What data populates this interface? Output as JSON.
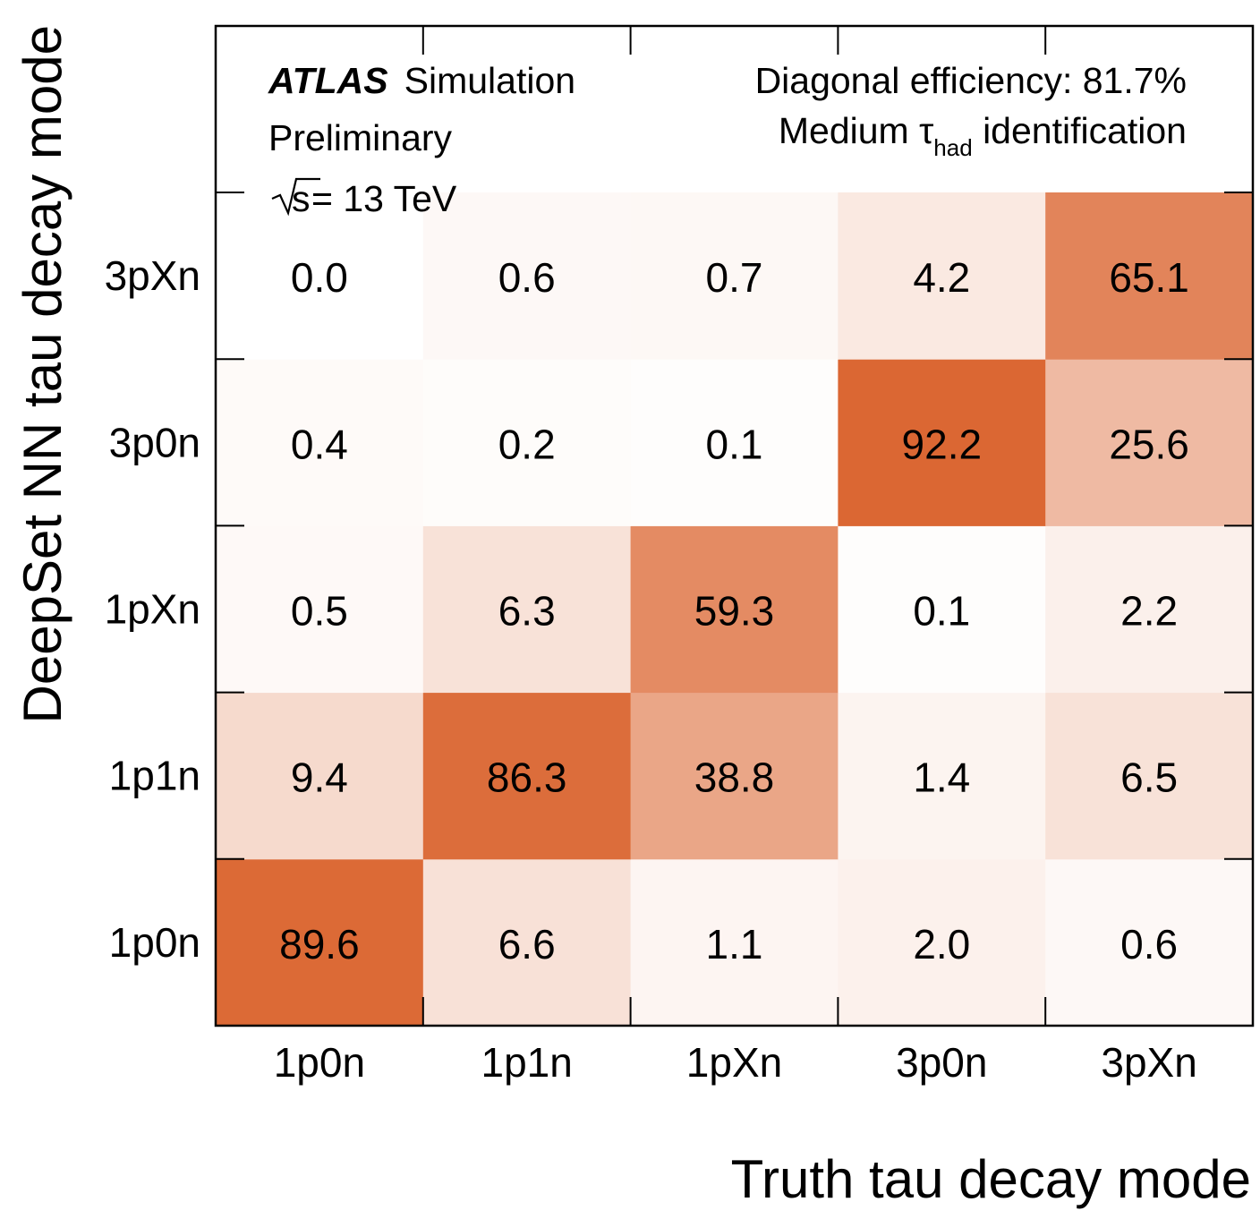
{
  "chart_data": {
    "type": "heatmap",
    "xlabel": "Truth tau decay mode",
    "ylabel": "DeepSet NN tau decay mode",
    "x_categories": [
      "1p0n",
      "1p1n",
      "1pXn",
      "3p0n",
      "3pXn"
    ],
    "y_categories": [
      "1p0n",
      "1p1n",
      "1pXn",
      "3p0n",
      "3pXn"
    ],
    "values": [
      [
        89.6,
        6.6,
        1.1,
        2.0,
        0.6
      ],
      [
        9.4,
        86.3,
        38.8,
        1.4,
        6.5
      ],
      [
        0.5,
        6.3,
        59.3,
        0.1,
        2.2
      ],
      [
        0.4,
        0.2,
        0.1,
        92.2,
        25.6
      ],
      [
        0.0,
        0.6,
        0.7,
        4.2,
        65.1
      ]
    ],
    "value_labels": [
      [
        "89.6",
        "6.6",
        "1.1",
        "2.0",
        "0.6"
      ],
      [
        "9.4",
        "86.3",
        "38.8",
        "1.4",
        "6.5"
      ],
      [
        "0.5",
        "6.3",
        "59.3",
        "0.1",
        "2.2"
      ],
      [
        "0.4",
        "0.2",
        "0.1",
        "92.2",
        "25.6"
      ],
      [
        "0.0",
        "0.6",
        "0.7",
        "4.2",
        "65.1"
      ]
    ],
    "color_range": [
      0,
      100
    ],
    "colors": {
      "low": "#ffffff",
      "high": "#d95f28"
    },
    "annotations": {
      "experiment": "ATLAS",
      "simulation": "Simulation",
      "preliminary": "Preliminary",
      "energy_prefix": "s",
      "energy_suffix": " = 13 TeV",
      "efficiency": "Diagonal efficiency: 81.7%",
      "id_prefix": "Medium ",
      "id_symbol": "τ",
      "id_subscript": "had",
      "id_suffix": " identification"
    }
  }
}
